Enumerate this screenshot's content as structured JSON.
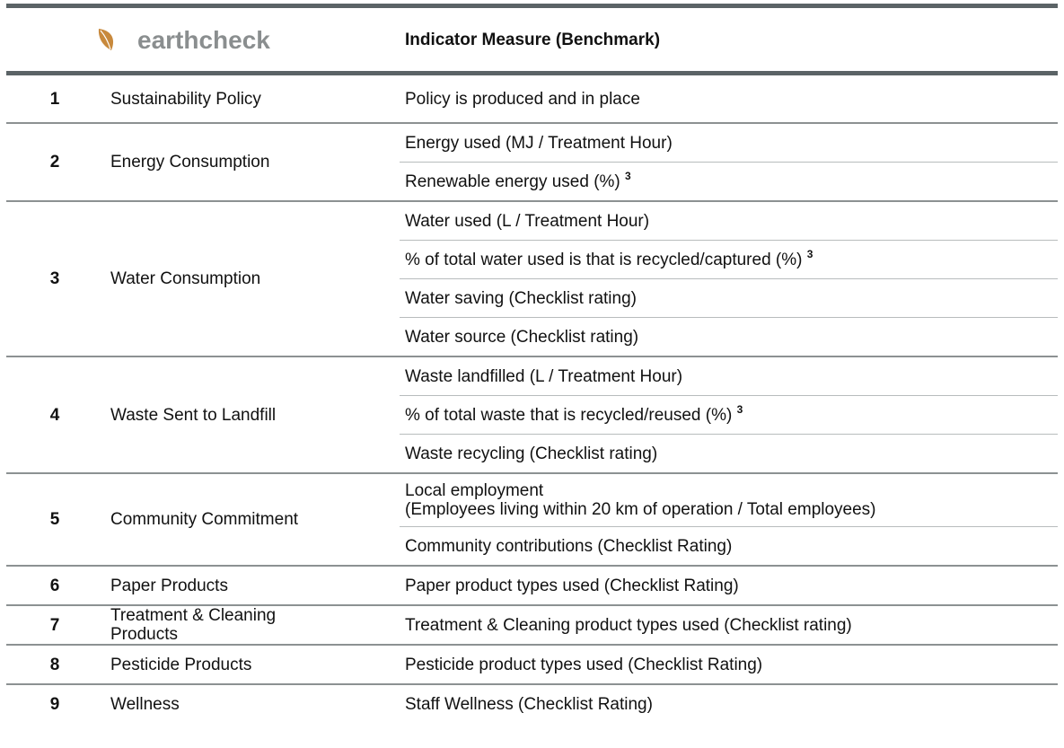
{
  "header": {
    "logo": "earthcheck",
    "title": "Indicator Measure (Benchmark)"
  },
  "rows": [
    {
      "number": "1",
      "name": "Sustainability Policy",
      "measures": [
        {
          "text": "Policy is produced and in place"
        }
      ]
    },
    {
      "number": "2",
      "name": "Energy Consumption",
      "measures": [
        {
          "text": "Energy used (MJ / Treatment Hour)"
        },
        {
          "text": "Renewable energy used (%)",
          "note": "3"
        }
      ]
    },
    {
      "number": "3",
      "name": "Water Consumption",
      "measures": [
        {
          "text": "Water used (L / Treatment Hour)"
        },
        {
          "text": "% of total water used is that is recycled/captured (%)",
          "note": "3"
        },
        {
          "text": "Water saving (Checklist rating)"
        },
        {
          "text": "Water source (Checklist rating)"
        }
      ]
    },
    {
      "number": "4",
      "name": "Waste Sent to Landfill",
      "measures": [
        {
          "text": "Waste landfilled (L / Treatment Hour)"
        },
        {
          "text": "% of total waste that is recycled/reused (%)",
          "note": "3"
        },
        {
          "text": "Waste recycling (Checklist rating)"
        }
      ]
    },
    {
      "number": "5",
      "name": "Community Commitment",
      "measures": [
        {
          "text": "Local employment\n(Employees living within 20 km of operation / Total employees)"
        },
        {
          "text": "Community contributions (Checklist Rating)"
        }
      ]
    },
    {
      "number": "6",
      "name": "Paper Products",
      "measures": [
        {
          "text": "Paper product types used (Checklist Rating)"
        }
      ]
    },
    {
      "number": "7",
      "name": "Treatment & Cleaning\nProducts",
      "measures": [
        {
          "text": "Treatment & Cleaning product types used (Checklist rating)"
        }
      ]
    },
    {
      "number": "8",
      "name": "Pesticide Products",
      "measures": [
        {
          "text": "Pesticide product types used (Checklist Rating)"
        }
      ]
    },
    {
      "number": "9",
      "name": "Wellness",
      "measures": [
        {
          "text": "Staff Wellness (Checklist Rating)"
        }
      ]
    }
  ]
}
